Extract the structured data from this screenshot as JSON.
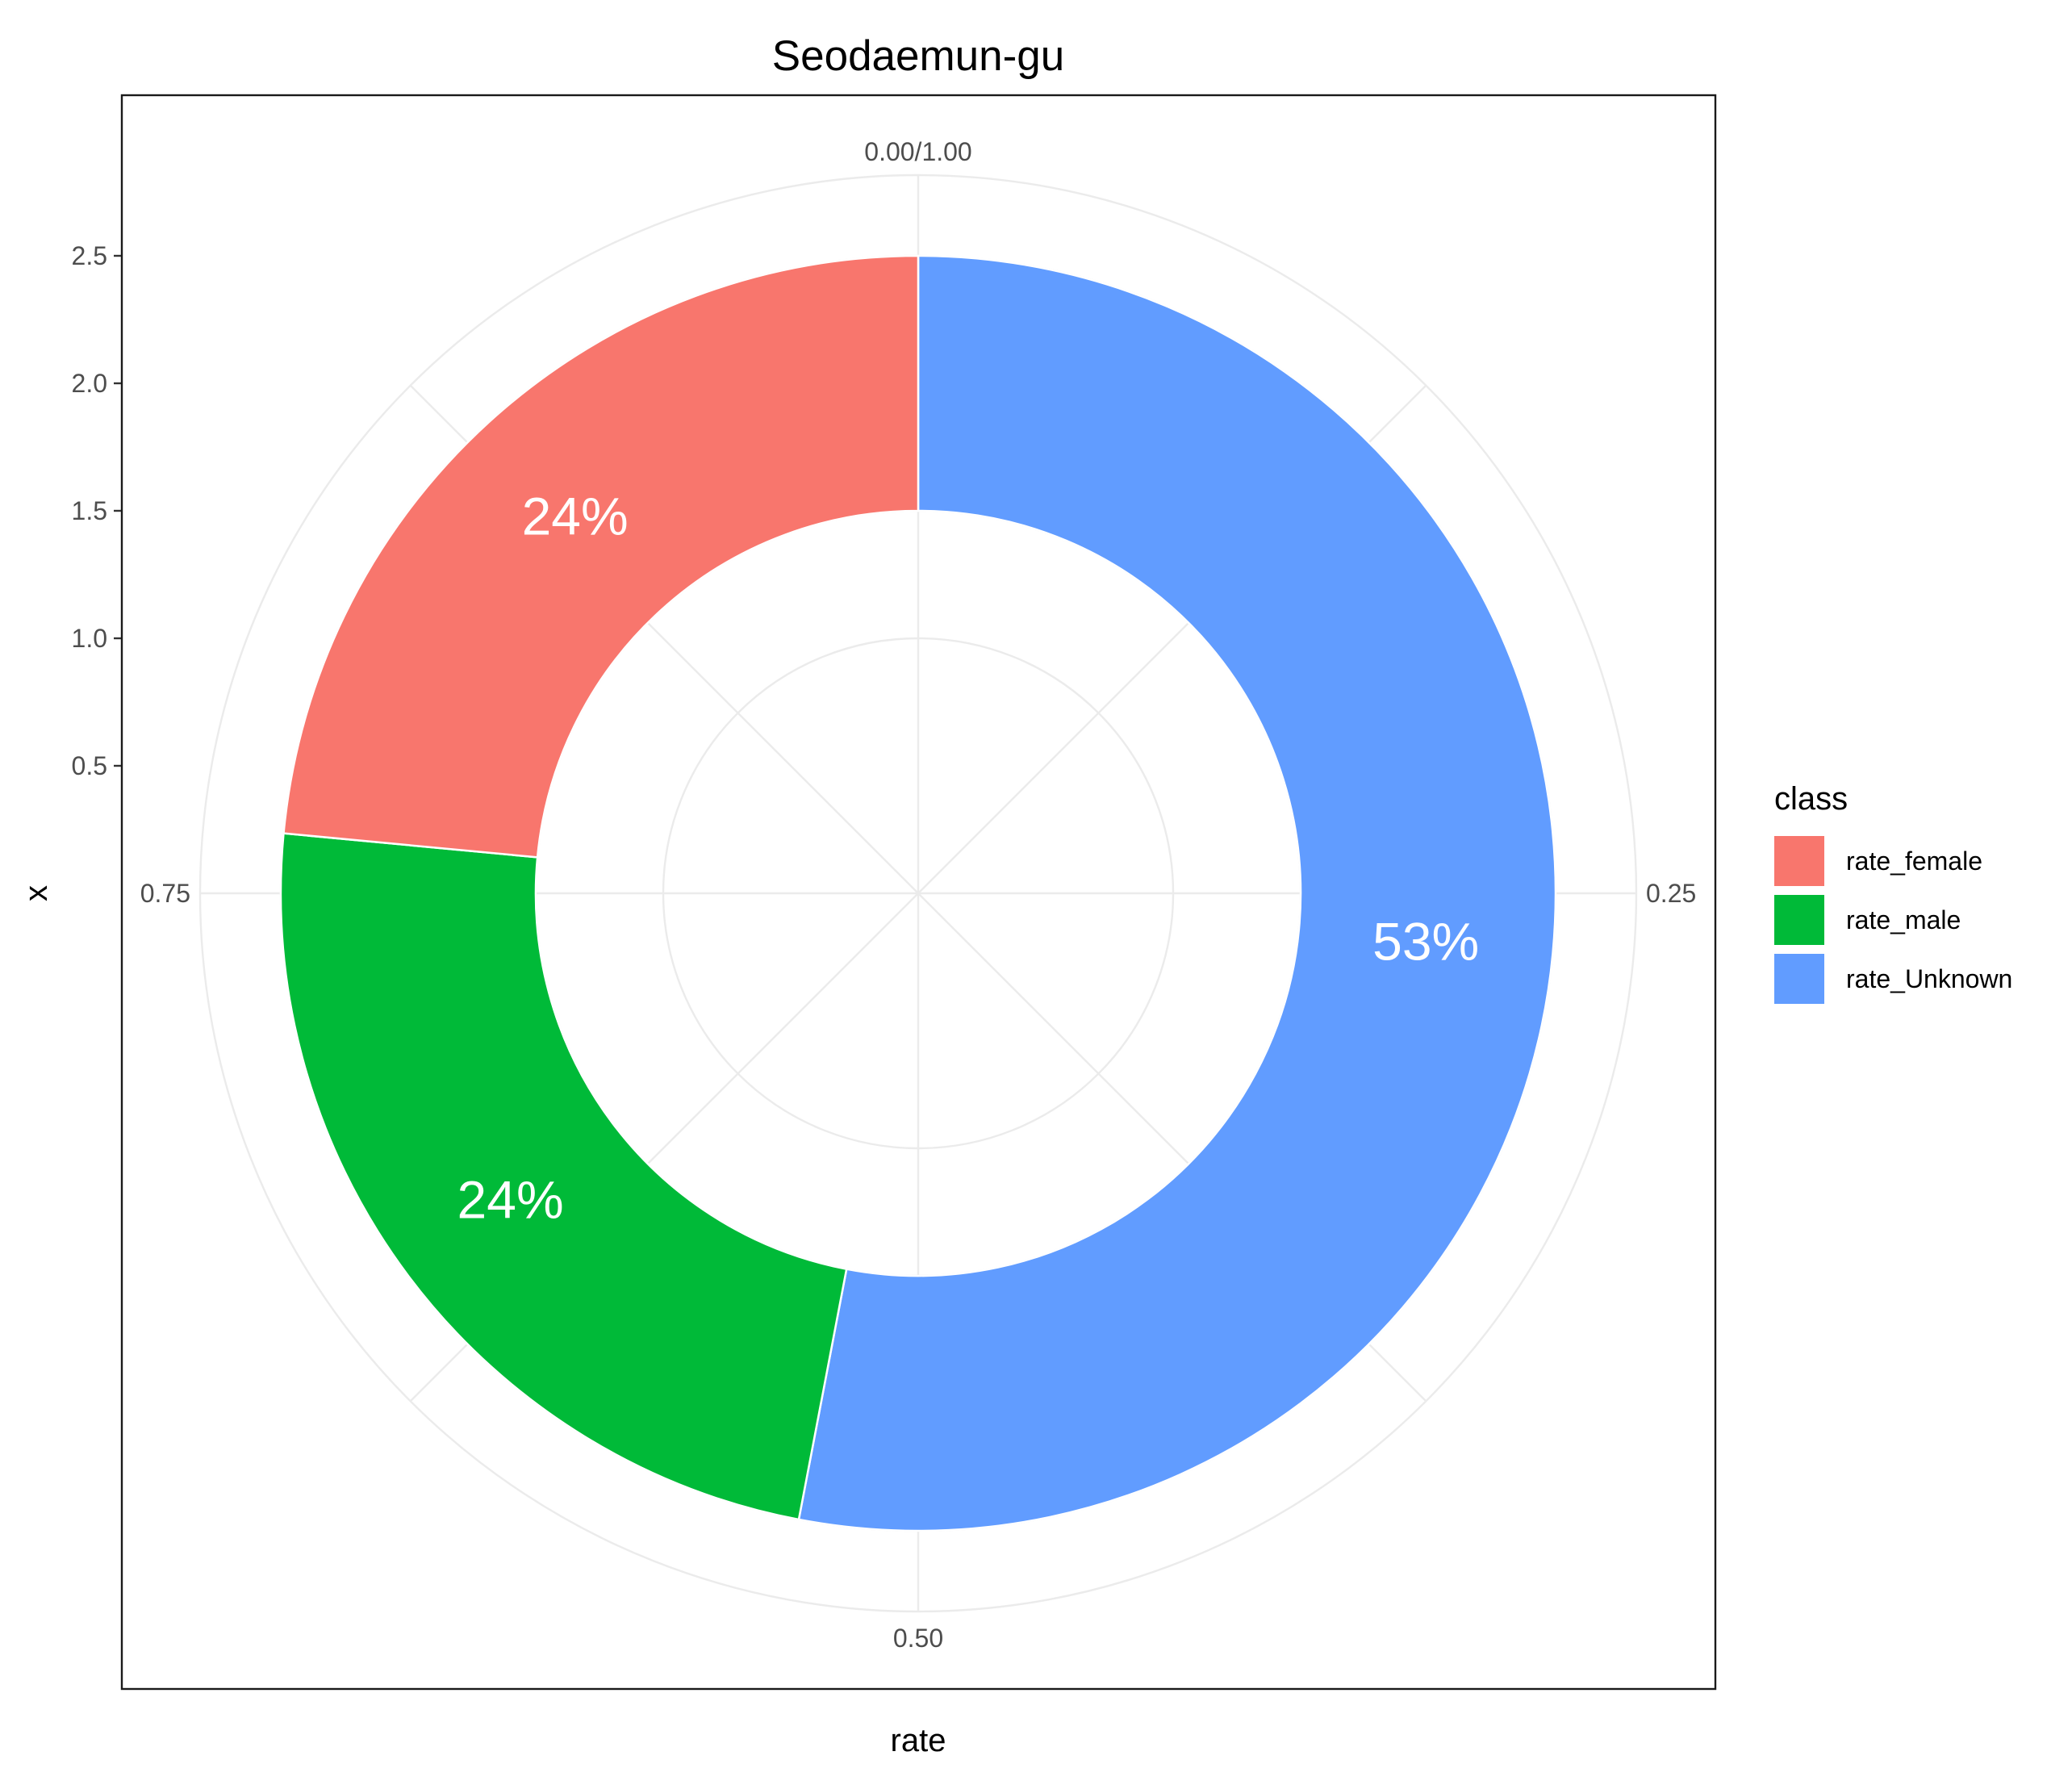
{
  "chart_data": {
    "type": "pie",
    "title": "Seodaemun-gu",
    "xlabel": "rate",
    "ylabel": "x",
    "legend_title": "class",
    "legend_position": "right",
    "grid": true,
    "angle_ticks": [
      {
        "value": 0,
        "label": "0.00/1.00"
      },
      {
        "value": 0.25,
        "label": "0.25"
      },
      {
        "value": 0.5,
        "label": "0.50"
      },
      {
        "value": 0.75,
        "label": "0.75"
      }
    ],
    "radial_ticks": [
      {
        "value": 0.5,
        "label": "0.5"
      },
      {
        "value": 1.0,
        "label": "1.0"
      },
      {
        "value": 1.5,
        "label": "1.5"
      },
      {
        "value": 2.0,
        "label": "2.0"
      },
      {
        "value": 2.5,
        "label": "2.5"
      }
    ],
    "radial_range": [
      0,
      2.5
    ],
    "inner_radius": 1.5,
    "outer_radius": 2.5,
    "slices": [
      {
        "name": "rate_Unknown",
        "value": 0.53,
        "label": "53%",
        "color": "#619CFF"
      },
      {
        "name": "rate_male",
        "value": 0.235,
        "label": "24%",
        "color": "#00BA38"
      },
      {
        "name": "rate_female",
        "value": 0.235,
        "label": "24%",
        "color": "#F8766D"
      }
    ],
    "legend_order": [
      "rate_female",
      "rate_male",
      "rate_Unknown"
    ]
  }
}
